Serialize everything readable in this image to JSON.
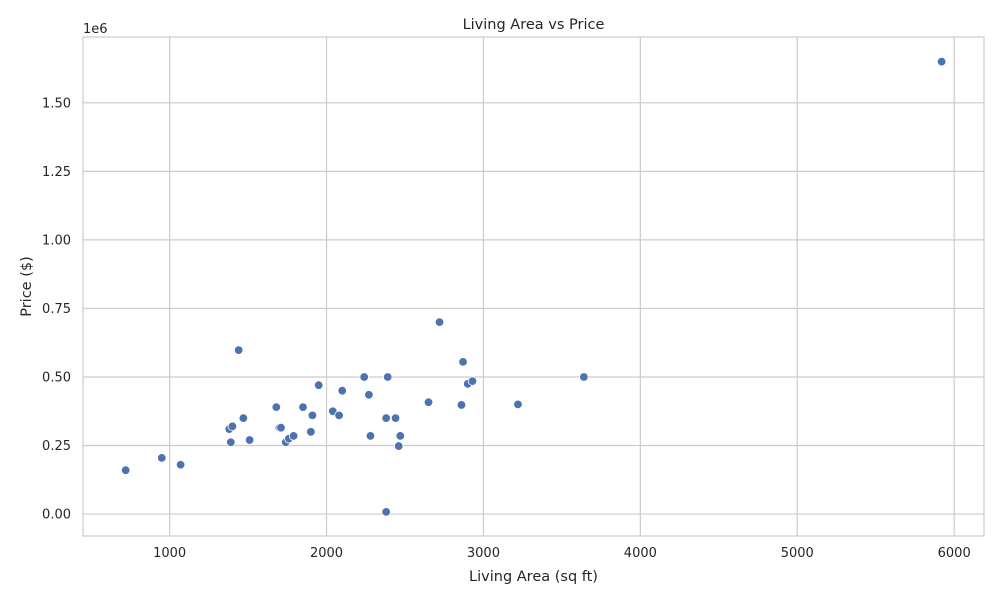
{
  "chart_data": {
    "type": "scatter",
    "title": "Living Area vs Price",
    "xlabel": "Living Area (sq ft)",
    "ylabel": "Price ($)",
    "y_offset_text": "1e6",
    "xlim": [
      448,
      6190
    ],
    "ylim": [
      -0.08,
      1.74
    ],
    "y_scale_multiplier": 1000000,
    "x_ticks": [
      1000,
      2000,
      3000,
      4000,
      5000,
      6000
    ],
    "y_ticks": [
      0.0,
      0.25,
      0.5,
      0.75,
      1.0,
      1.25,
      1.5
    ],
    "x_tick_labels": [
      "1000",
      "2000",
      "3000",
      "4000",
      "5000",
      "6000"
    ],
    "y_tick_labels": [
      "0.00",
      "0.25",
      "0.50",
      "0.75",
      "1.00",
      "1.25",
      "1.50"
    ],
    "grid": true,
    "colors": {
      "point": "#4c72b0",
      "grid": "#cccccc",
      "text": "#262626"
    },
    "points": [
      {
        "x": 720,
        "y": 0.16
      },
      {
        "x": 950,
        "y": 0.205
      },
      {
        "x": 1070,
        "y": 0.18
      },
      {
        "x": 1380,
        "y": 0.31
      },
      {
        "x": 1390,
        "y": 0.262
      },
      {
        "x": 1400,
        "y": 0.32
      },
      {
        "x": 1440,
        "y": 0.598
      },
      {
        "x": 1470,
        "y": 0.35
      },
      {
        "x": 1510,
        "y": 0.27
      },
      {
        "x": 1680,
        "y": 0.39
      },
      {
        "x": 1700,
        "y": 0.315
      },
      {
        "x": 1710,
        "y": 0.315
      },
      {
        "x": 1740,
        "y": 0.262
      },
      {
        "x": 1760,
        "y": 0.275
      },
      {
        "x": 1790,
        "y": 0.285
      },
      {
        "x": 1850,
        "y": 0.39
      },
      {
        "x": 1900,
        "y": 0.3
      },
      {
        "x": 1910,
        "y": 0.36
      },
      {
        "x": 1950,
        "y": 0.47
      },
      {
        "x": 2040,
        "y": 0.375
      },
      {
        "x": 2080,
        "y": 0.36
      },
      {
        "x": 2100,
        "y": 0.45
      },
      {
        "x": 2240,
        "y": 0.5
      },
      {
        "x": 2270,
        "y": 0.435
      },
      {
        "x": 2280,
        "y": 0.285
      },
      {
        "x": 2380,
        "y": 0.35
      },
      {
        "x": 2380,
        "y": 0.008
      },
      {
        "x": 2390,
        "y": 0.5
      },
      {
        "x": 2440,
        "y": 0.35
      },
      {
        "x": 2460,
        "y": 0.248
      },
      {
        "x": 2470,
        "y": 0.285
      },
      {
        "x": 2650,
        "y": 0.408
      },
      {
        "x": 2720,
        "y": 0.7
      },
      {
        "x": 2860,
        "y": 0.398
      },
      {
        "x": 2870,
        "y": 0.555
      },
      {
        "x": 2900,
        "y": 0.475
      },
      {
        "x": 2930,
        "y": 0.485
      },
      {
        "x": 3220,
        "y": 0.4
      },
      {
        "x": 3640,
        "y": 0.5
      },
      {
        "x": 5920,
        "y": 1.65
      }
    ]
  }
}
